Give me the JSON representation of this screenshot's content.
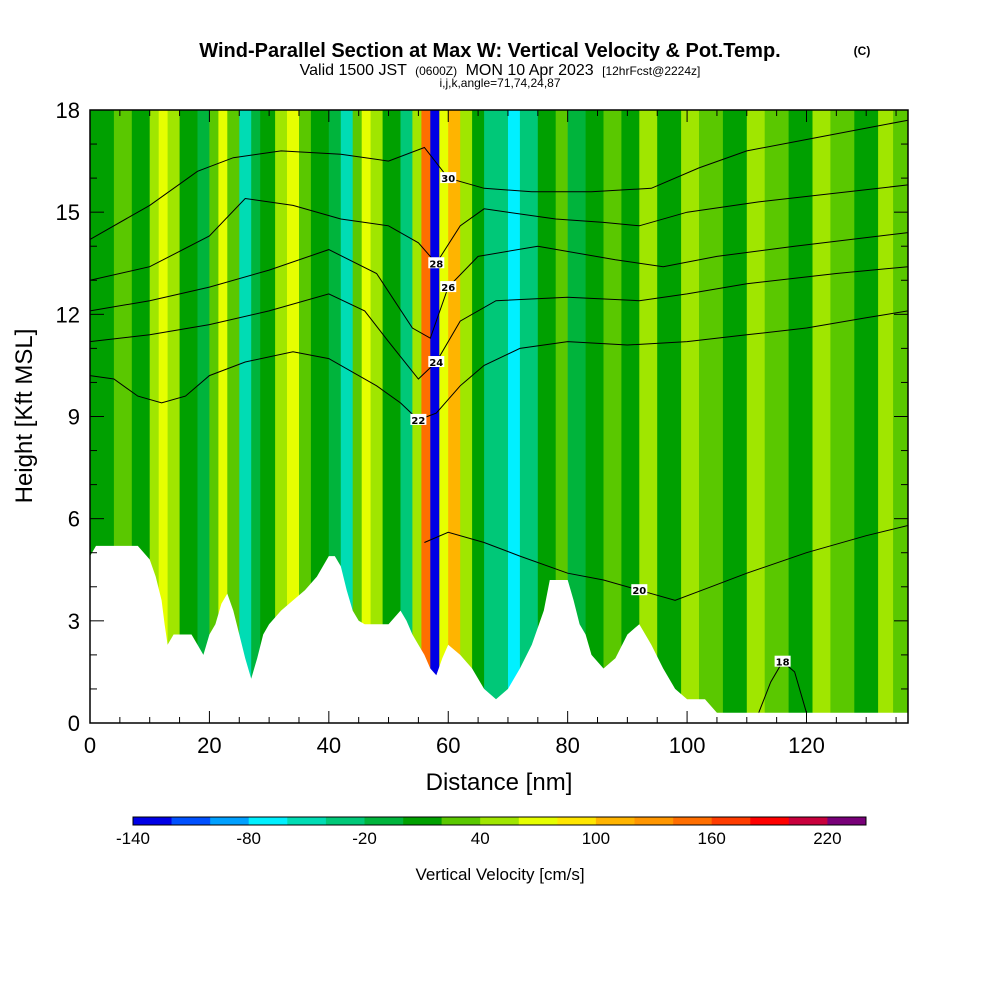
{
  "title": {
    "main": "Wind-Parallel Section at Max W: Vertical Velocity & Pot.Temp.",
    "copyright": "(C)",
    "valid_prefix": "Valid 1500 JST",
    "valid_utc": "(0600Z)",
    "valid_date": "MON 10 Apr 2023",
    "forecast": "[12hrFcst@2224z]",
    "ijk": "i,j,k,angle=71,74,24,87"
  },
  "chart_data": {
    "type": "heatmap",
    "xlabel": "Distance [nm]",
    "ylabel": "Height [Kft MSL]",
    "xlim": [
      0,
      137
    ],
    "ylim": [
      0,
      18
    ],
    "x_ticks": [
      0,
      20,
      40,
      60,
      80,
      100,
      120
    ],
    "y_ticks": [
      0,
      3,
      6,
      9,
      12,
      15,
      18
    ],
    "colorbar": {
      "label": "Vertical Velocity [cm/s]",
      "tick_labels": [
        "-140",
        "-80",
        "-20",
        "40",
        "100",
        "160",
        "220"
      ],
      "tick_values": [
        -140,
        -80,
        -20,
        40,
        100,
        160,
        220
      ],
      "levels": [
        -140,
        -120,
        -100,
        -80,
        -60,
        -40,
        -20,
        0,
        20,
        40,
        60,
        80,
        100,
        120,
        140,
        160,
        180,
        200,
        220,
        240
      ],
      "colors": [
        "#0000e6",
        "#0050ff",
        "#00a0ff",
        "#00f0ff",
        "#00dcb4",
        "#00c878",
        "#00b43c",
        "#00a000",
        "#5ac800",
        "#a0e600",
        "#e6ff00",
        "#ffe600",
        "#ffb400",
        "#ff9600",
        "#ff6e00",
        "#ff3c00",
        "#ff0000",
        "#c8003c",
        "#780078"
      ]
    },
    "terrain_kft": [
      [
        0,
        4.9
      ],
      [
        1,
        5.2
      ],
      [
        8,
        5.2
      ],
      [
        10,
        4.8
      ],
      [
        11,
        4.3
      ],
      [
        12,
        3.6
      ],
      [
        12.5,
        2.9
      ],
      [
        13,
        2.3
      ],
      [
        14,
        2.6
      ],
      [
        17,
        2.6
      ],
      [
        18,
        2.3
      ],
      [
        19,
        2.0
      ],
      [
        20,
        2.6
      ],
      [
        21,
        2.9
      ],
      [
        22,
        3.5
      ],
      [
        23,
        3.8
      ],
      [
        24,
        3.3
      ],
      [
        25,
        2.6
      ],
      [
        26,
        1.9
      ],
      [
        27,
        1.3
      ],
      [
        28,
        1.9
      ],
      [
        29,
        2.6
      ],
      [
        30,
        2.9
      ],
      [
        32,
        3.3
      ],
      [
        34,
        3.6
      ],
      [
        36,
        3.9
      ],
      [
        38,
        4.3
      ],
      [
        40,
        4.9
      ],
      [
        41,
        4.9
      ],
      [
        42,
        4.6
      ],
      [
        43,
        3.9
      ],
      [
        44,
        3.3
      ],
      [
        45,
        3.0
      ],
      [
        46,
        2.9
      ],
      [
        50,
        2.9
      ],
      [
        52,
        3.3
      ],
      [
        53,
        3.0
      ],
      [
        54,
        2.6
      ],
      [
        55,
        2.3
      ],
      [
        56,
        2.0
      ],
      [
        57,
        1.6
      ],
      [
        58,
        1.4
      ],
      [
        59,
        1.9
      ],
      [
        60,
        2.3
      ],
      [
        62,
        2.0
      ],
      [
        64,
        1.6
      ],
      [
        66,
        1.0
      ],
      [
        68,
        0.7
      ],
      [
        70,
        1.0
      ],
      [
        72,
        1.6
      ],
      [
        74,
        2.3
      ],
      [
        76,
        3.3
      ],
      [
        77,
        4.2
      ],
      [
        80,
        4.2
      ],
      [
        81,
        3.6
      ],
      [
        82,
        2.9
      ],
      [
        83,
        2.6
      ],
      [
        84,
        2.0
      ],
      [
        86,
        1.6
      ],
      [
        88,
        1.9
      ],
      [
        90,
        2.6
      ],
      [
        92,
        2.9
      ],
      [
        94,
        2.3
      ],
      [
        96,
        1.6
      ],
      [
        98,
        1.0
      ],
      [
        100,
        0.7
      ],
      [
        103,
        0.7
      ],
      [
        105,
        0.3
      ],
      [
        137,
        0.3
      ]
    ],
    "theta_contours": [
      {
        "label": "18",
        "points": [
          [
            112,
            0.3
          ],
          [
            114,
            1.2
          ],
          [
            116,
            1.8
          ],
          [
            118,
            1.5
          ],
          [
            120,
            0.3
          ]
        ]
      },
      {
        "label": "20",
        "points": [
          [
            56,
            5.3
          ],
          [
            60,
            5.6
          ],
          [
            66,
            5.3
          ],
          [
            72,
            4.9
          ],
          [
            80,
            4.4
          ],
          [
            86,
            4.2
          ],
          [
            92,
            3.9
          ],
          [
            98,
            3.6
          ],
          [
            104,
            4.0
          ],
          [
            110,
            4.4
          ],
          [
            120,
            5.0
          ],
          [
            130,
            5.5
          ],
          [
            137,
            5.8
          ]
        ]
      },
      {
        "label": "22",
        "points": [
          [
            0,
            10.2
          ],
          [
            4,
            10.1
          ],
          [
            8,
            9.6
          ],
          [
            12,
            9.4
          ],
          [
            16,
            9.6
          ],
          [
            20,
            10.2
          ],
          [
            26,
            10.6
          ],
          [
            34,
            10.9
          ],
          [
            40,
            10.7
          ],
          [
            44,
            10.3
          ],
          [
            48,
            9.9
          ],
          [
            52,
            9.4
          ],
          [
            55,
            8.9
          ],
          [
            58,
            9.1
          ],
          [
            62,
            9.9
          ],
          [
            66,
            10.5
          ],
          [
            72,
            11.0
          ],
          [
            80,
            11.2
          ],
          [
            90,
            11.1
          ],
          [
            100,
            11.2
          ],
          [
            110,
            11.4
          ],
          [
            120,
            11.6
          ],
          [
            130,
            11.9
          ],
          [
            137,
            12.1
          ]
        ]
      },
      {
        "label": "24",
        "points": [
          [
            0,
            11.2
          ],
          [
            10,
            11.4
          ],
          [
            20,
            11.7
          ],
          [
            30,
            12.1
          ],
          [
            40,
            12.6
          ],
          [
            46,
            12.1
          ],
          [
            50,
            11.2
          ],
          [
            55,
            10.1
          ],
          [
            58,
            10.6
          ],
          [
            62,
            11.8
          ],
          [
            68,
            12.4
          ],
          [
            80,
            12.5
          ],
          [
            92,
            12.4
          ],
          [
            100,
            12.6
          ],
          [
            110,
            12.9
          ],
          [
            125,
            13.2
          ],
          [
            137,
            13.4
          ]
        ]
      },
      {
        "label": "26",
        "points": [
          [
            0,
            12.1
          ],
          [
            10,
            12.4
          ],
          [
            20,
            12.8
          ],
          [
            30,
            13.3
          ],
          [
            40,
            13.9
          ],
          [
            48,
            13.2
          ],
          [
            54,
            11.6
          ],
          [
            57,
            11.3
          ],
          [
            60,
            12.8
          ],
          [
            65,
            13.7
          ],
          [
            75,
            14.0
          ],
          [
            88,
            13.6
          ],
          [
            96,
            13.4
          ],
          [
            105,
            13.7
          ],
          [
            118,
            14.0
          ],
          [
            137,
            14.4
          ]
        ]
      },
      {
        "label": "28",
        "points": [
          [
            0,
            13.0
          ],
          [
            10,
            13.4
          ],
          [
            20,
            14.3
          ],
          [
            26,
            15.4
          ],
          [
            34,
            15.2
          ],
          [
            42,
            14.8
          ],
          [
            50,
            14.6
          ],
          [
            55,
            14.1
          ],
          [
            58,
            13.5
          ],
          [
            62,
            14.6
          ],
          [
            66,
            15.1
          ],
          [
            78,
            14.8
          ],
          [
            86,
            14.7
          ],
          [
            92,
            14.6
          ],
          [
            100,
            15.0
          ],
          [
            112,
            15.3
          ],
          [
            137,
            15.8
          ]
        ]
      },
      {
        "label": "30",
        "points": [
          [
            0,
            14.2
          ],
          [
            10,
            15.2
          ],
          [
            18,
            16.2
          ],
          [
            24,
            16.6
          ],
          [
            32,
            16.8
          ],
          [
            42,
            16.7
          ],
          [
            50,
            16.5
          ],
          [
            56,
            16.9
          ],
          [
            60,
            16.0
          ],
          [
            66,
            15.7
          ],
          [
            74,
            15.6
          ],
          [
            84,
            15.6
          ],
          [
            94,
            15.7
          ],
          [
            102,
            16.3
          ],
          [
            110,
            16.8
          ],
          [
            122,
            17.2
          ],
          [
            137,
            17.7
          ]
        ]
      }
    ],
    "vertical_velocity_field": [
      {
        "x": [
          0,
          4
        ],
        "w": 0
      },
      {
        "x": [
          4,
          7
        ],
        "w": 20
      },
      {
        "x": [
          7,
          10
        ],
        "w": 0
      },
      {
        "x": [
          10,
          11.5
        ],
        "w": 40
      },
      {
        "x": [
          11.5,
          13
        ],
        "w": 60
      },
      {
        "x": [
          13,
          15
        ],
        "w": 40
      },
      {
        "x": [
          15,
          18
        ],
        "w": 0
      },
      {
        "x": [
          18,
          20
        ],
        "w": -20
      },
      {
        "x": [
          20,
          21.5
        ],
        "w": 20
      },
      {
        "x": [
          21.5,
          23
        ],
        "w": 60
      },
      {
        "x": [
          23,
          25
        ],
        "w": 20
      },
      {
        "x": [
          25,
          27
        ],
        "w": -60
      },
      {
        "x": [
          27,
          28.5
        ],
        "w": -20
      },
      {
        "x": [
          28.5,
          31
        ],
        "w": 0
      },
      {
        "x": [
          31,
          33
        ],
        "w": 40
      },
      {
        "x": [
          33,
          35
        ],
        "w": 60
      },
      {
        "x": [
          35,
          37
        ],
        "w": 20
      },
      {
        "x": [
          37,
          40
        ],
        "w": 0
      },
      {
        "x": [
          40,
          42
        ],
        "w": -20
      },
      {
        "x": [
          42,
          44
        ],
        "w": -60
      },
      {
        "x": [
          44,
          45.5
        ],
        "w": 20
      },
      {
        "x": [
          45.5,
          47
        ],
        "w": 60
      },
      {
        "x": [
          47,
          49
        ],
        "w": 40
      },
      {
        "x": [
          49,
          52
        ],
        "w": 0
      },
      {
        "x": [
          52,
          54
        ],
        "w": -40
      },
      {
        "x": [
          54,
          55.5
        ],
        "w": 40
      },
      {
        "x": [
          55.5,
          57
        ],
        "w": 140
      },
      {
        "x": [
          57,
          58.5
        ],
        "w": -140
      },
      {
        "x": [
          58.5,
          60
        ],
        "w": 60
      },
      {
        "x": [
          60,
          62
        ],
        "w": 100
      },
      {
        "x": [
          62,
          64
        ],
        "w": 40
      },
      {
        "x": [
          64,
          66
        ],
        "w": 0
      },
      {
        "x": [
          66,
          70
        ],
        "w": -40
      },
      {
        "x": [
          70,
          72
        ],
        "w": -80
      },
      {
        "x": [
          72,
          75
        ],
        "w": -40
      },
      {
        "x": [
          75,
          78
        ],
        "w": 0
      },
      {
        "x": [
          78,
          80
        ],
        "w": 20
      },
      {
        "x": [
          80,
          83
        ],
        "w": -20
      },
      {
        "x": [
          83,
          86
        ],
        "w": 0
      },
      {
        "x": [
          86,
          89
        ],
        "w": 20
      },
      {
        "x": [
          89,
          92
        ],
        "w": 0
      },
      {
        "x": [
          92,
          95
        ],
        "w": 40
      },
      {
        "x": [
          95,
          99
        ],
        "w": 0
      },
      {
        "x": [
          99,
          102
        ],
        "w": 40
      },
      {
        "x": [
          102,
          106
        ],
        "w": 20
      },
      {
        "x": [
          106,
          110
        ],
        "w": 0
      },
      {
        "x": [
          110,
          113
        ],
        "w": 40
      },
      {
        "x": [
          113,
          117
        ],
        "w": 20
      },
      {
        "x": [
          117,
          121
        ],
        "w": 0
      },
      {
        "x": [
          121,
          124
        ],
        "w": 40
      },
      {
        "x": [
          124,
          128
        ],
        "w": 20
      },
      {
        "x": [
          128,
          132
        ],
        "w": 0
      },
      {
        "x": [
          132,
          134.5
        ],
        "w": 40
      },
      {
        "x": [
          134.5,
          137
        ],
        "w": 20
      }
    ]
  }
}
